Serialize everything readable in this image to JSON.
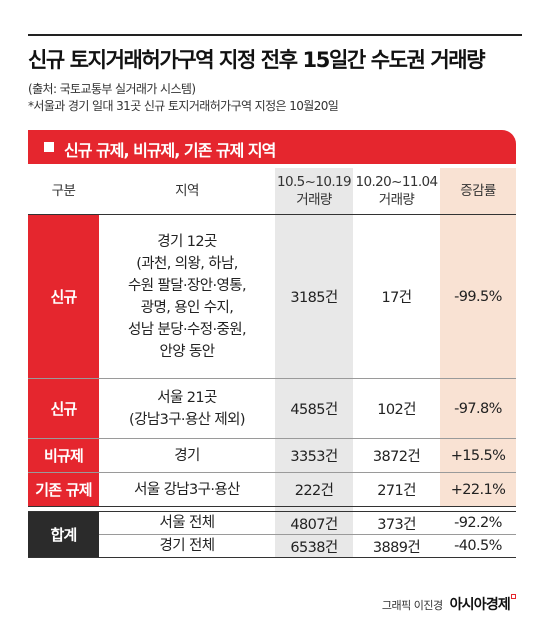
{
  "title": "신규 토지거래허가구역 지정 전후 15일간 수도권 거래량",
  "source": "(출처: 국토교통부 실거래가 시스템)",
  "note": "*서울과 경기 일대 31곳 신규 토지거래허가구역 지정은 10월20일",
  "banner": "신규 규제, 비규제, 기존 규제 지역",
  "headers": {
    "category": "구분",
    "region": "지역",
    "before": [
      "10.5~10.19",
      "거래량"
    ],
    "after": [
      "10.20~11.04",
      "거래량"
    ],
    "change": "증감률"
  },
  "rows": [
    {
      "category": "신규",
      "region": [
        "경기 12곳",
        "(과천, 의왕, 하남,",
        "수원 팔달·장안·영통,",
        "광명, 용인 수지,",
        "성남 분당·수정·중원,",
        "안양 동안"
      ],
      "before": "3185건",
      "after": "17건",
      "change": "-99.5%"
    },
    {
      "category": "신규",
      "region": [
        "서울 21곳",
        "(강남3구·용산 제외)"
      ],
      "before": "4585건",
      "after": "102건",
      "change": "-97.8%"
    },
    {
      "category": "비규제",
      "region": [
        "경기"
      ],
      "before": "3353건",
      "after": "3872건",
      "change": "+15.5%"
    },
    {
      "category": "기존 규제",
      "region": [
        "서울 강남3구·용산"
      ],
      "before": "222건",
      "after": "271건",
      "change": "+22.1%"
    }
  ],
  "total": {
    "category": "합계",
    "rows": [
      {
        "region": "서울 전체",
        "before": "4807건",
        "after": "373건",
        "change": "-92.2%"
      },
      {
        "region": "경기 전체",
        "before": "6538건",
        "after": "3889건",
        "change": "-40.5%"
      }
    ]
  },
  "credit": {
    "byline": "그래픽 이진경",
    "brand": "아시아경제"
  },
  "colors": {
    "accent_red": "#e5262e",
    "dark": "#2b2b2b",
    "gray_column": "#e8e8e8",
    "peach_column": "#f9e2d3"
  }
}
